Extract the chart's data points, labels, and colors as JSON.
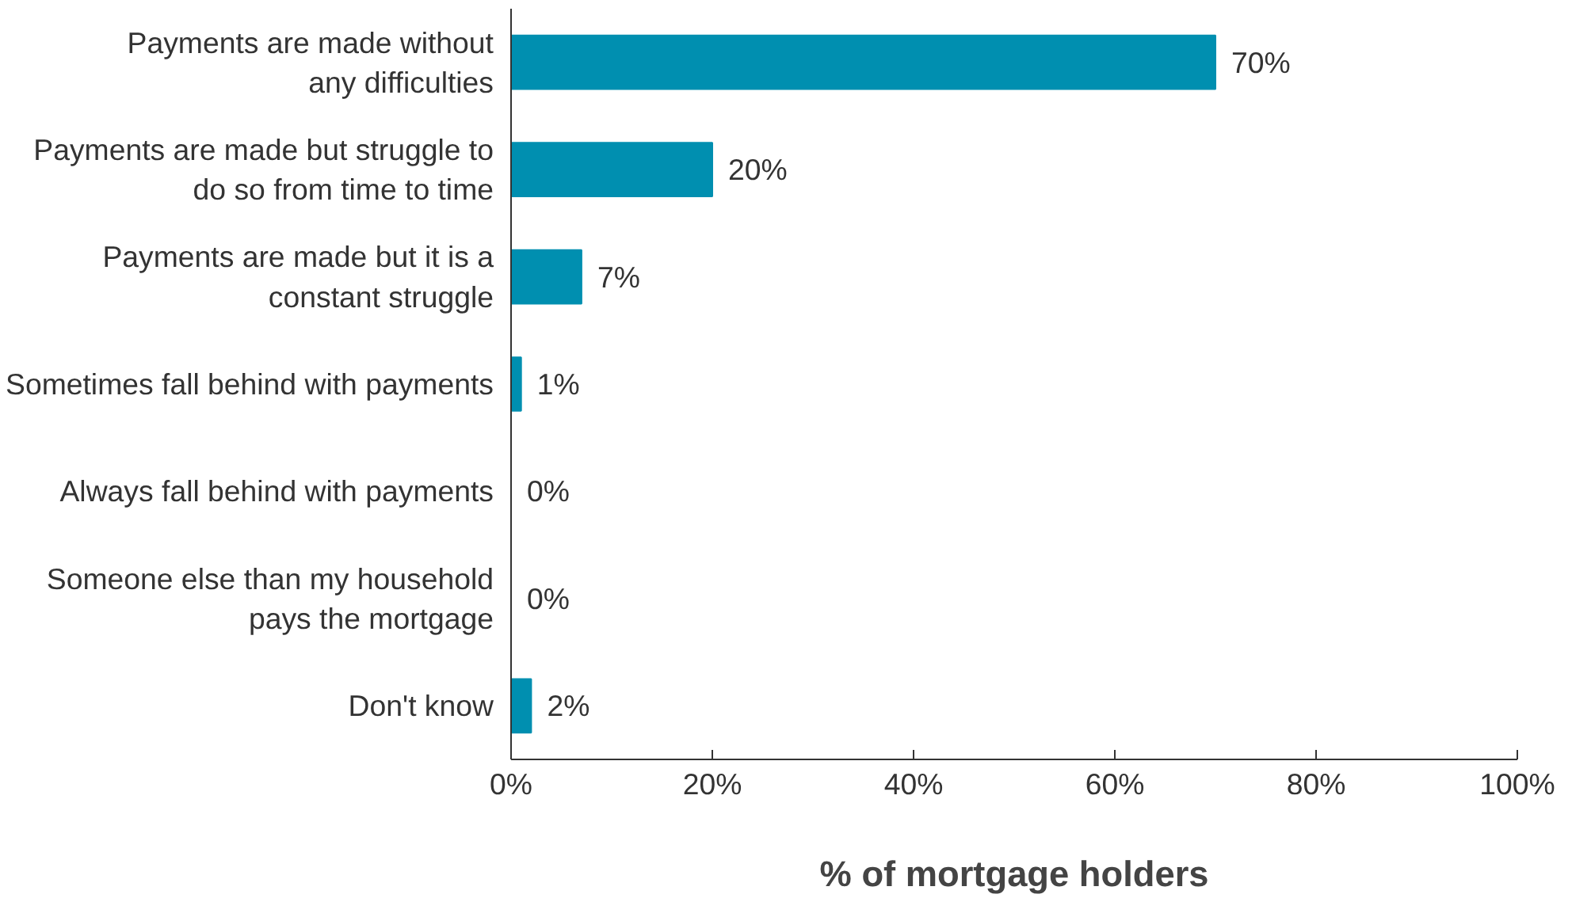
{
  "chart_data": {
    "type": "bar",
    "orientation": "horizontal",
    "xlabel": "% of mortgage holders",
    "categories": [
      "Payments are made without\nany difficulties",
      "Payments are made but struggle to\ndo so from time to time",
      "Payments are made but it is a\nconstant struggle",
      "Sometimes fall behind with payments",
      "Always fall behind with payments",
      "Someone else than my household\npays the mortgage",
      "Don't know"
    ],
    "values": [
      70,
      20,
      7,
      1,
      0,
      0,
      2
    ],
    "value_labels": [
      "70%",
      "20%",
      "7%",
      "1%",
      "0%",
      "0%",
      "2%"
    ],
    "color": "#008fb0",
    "xlim": [
      0,
      100
    ],
    "xticks": [
      {
        "value": 0,
        "label": "0%"
      },
      {
        "value": 20,
        "label": "20%"
      },
      {
        "value": 40,
        "label": "40%"
      },
      {
        "value": 60,
        "label": "60%"
      },
      {
        "value": 80,
        "label": "80%"
      },
      {
        "value": 100,
        "label": "100%"
      }
    ],
    "grid": false
  }
}
